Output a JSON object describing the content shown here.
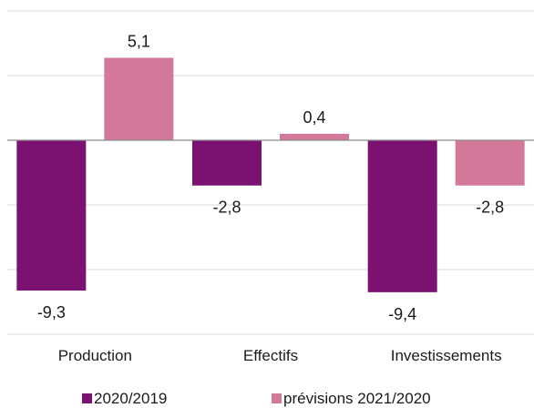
{
  "chart_data": {
    "type": "bar",
    "categories": [
      "Production",
      "Effectifs",
      "Investissements"
    ],
    "series": [
      {
        "name": "2020/2019",
        "values": [
          -9.3,
          -2.8,
          -9.4
        ],
        "labels": [
          "-9,3",
          "-2,8",
          "-9,4"
        ],
        "color": "#7b1170"
      },
      {
        "name": "prévisions 2021/2020",
        "values": [
          5.1,
          0.4,
          -2.8
        ],
        "labels": [
          "5,1",
          "0,4",
          "-2,8"
        ],
        "color": "#d4789a"
      }
    ],
    "ylim": [
      -12,
      8
    ],
    "ytick_step": 4,
    "grid": true,
    "legend_position": "bottom"
  }
}
